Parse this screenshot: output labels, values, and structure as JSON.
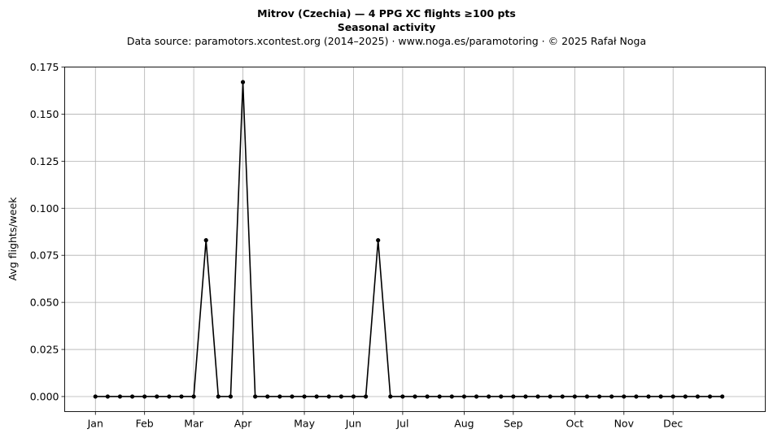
{
  "chart_data": {
    "type": "line",
    "title_line1": "Mitrov (Czechia)  —  4 PPG XC flights ≥100 pts",
    "title_line2": "Seasonal activity",
    "subtitle": "Data source: paramotors.xcontest.org (2014–2025)  ·  www.noga.es/paramotoring  ·  © 2025 Rafał Noga",
    "xlabel": "",
    "ylabel": "Avg flights/week",
    "xlim": [
      -2.5,
      54.5
    ],
    "ylim": [
      -0.008,
      0.175
    ],
    "x_ticks": [
      {
        "week": 0,
        "label": "Jan"
      },
      {
        "week": 4,
        "label": "Feb"
      },
      {
        "week": 8,
        "label": "Mar"
      },
      {
        "week": 12,
        "label": "Apr"
      },
      {
        "week": 17,
        "label": "May"
      },
      {
        "week": 21,
        "label": "Jun"
      },
      {
        "week": 25,
        "label": "Jul"
      },
      {
        "week": 30,
        "label": "Aug"
      },
      {
        "week": 34,
        "label": "Sep"
      },
      {
        "week": 39,
        "label": "Oct"
      },
      {
        "week": 43,
        "label": "Nov"
      },
      {
        "week": 47,
        "label": "Dec"
      }
    ],
    "y_ticks": [
      {
        "value": 0.0,
        "label": "0.000"
      },
      {
        "value": 0.025,
        "label": "0.025"
      },
      {
        "value": 0.05,
        "label": "0.050"
      },
      {
        "value": 0.075,
        "label": "0.075"
      },
      {
        "value": 0.1,
        "label": "0.100"
      },
      {
        "value": 0.125,
        "label": "0.125"
      },
      {
        "value": 0.15,
        "label": "0.150"
      },
      {
        "value": 0.175,
        "label": "0.175"
      }
    ],
    "grid": true,
    "series": [
      {
        "color": "#000000",
        "marker": "dot",
        "x": [
          0,
          1,
          2,
          3,
          4,
          5,
          6,
          7,
          8,
          9,
          10,
          11,
          12,
          13,
          14,
          15,
          16,
          17,
          18,
          19,
          20,
          21,
          22,
          23,
          24,
          25,
          26,
          27,
          28,
          29,
          30,
          31,
          32,
          33,
          34,
          35,
          36,
          37,
          38,
          39,
          40,
          41,
          42,
          43,
          44,
          45,
          46,
          47,
          48,
          49,
          50,
          51
        ],
        "values": [
          0,
          0,
          0,
          0,
          0,
          0,
          0,
          0,
          0,
          0.083,
          0,
          0,
          0.167,
          0,
          0,
          0,
          0,
          0,
          0,
          0,
          0,
          0,
          0,
          0.083,
          0,
          0,
          0,
          0,
          0,
          0,
          0,
          0,
          0,
          0,
          0,
          0,
          0,
          0,
          0,
          0,
          0,
          0,
          0,
          0,
          0,
          0,
          0,
          0,
          0,
          0,
          0,
          0
        ]
      }
    ]
  }
}
